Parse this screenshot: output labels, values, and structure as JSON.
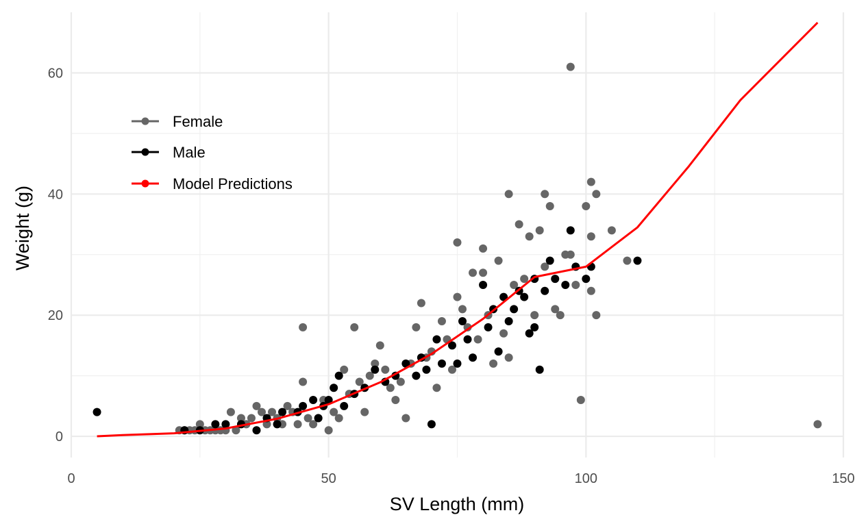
{
  "chart_data": {
    "type": "scatter",
    "title": "",
    "xlabel": "SV Length (mm)",
    "ylabel": "Weight (g)",
    "xlim": [
      0,
      150
    ],
    "ylim": [
      -3.5,
      70
    ],
    "x_ticks": [
      0,
      50,
      100,
      150
    ],
    "y_ticks": [
      0,
      20,
      40,
      60
    ],
    "x_tick_labels": [
      "0",
      "50",
      "100",
      "150"
    ],
    "y_tick_labels": [
      "0",
      "20",
      "40",
      "60"
    ],
    "grid": true,
    "legend_position": "top-left (inside)",
    "legend": [
      {
        "name": "Female",
        "color": "#666666"
      },
      {
        "name": "Male",
        "color": "#000000"
      },
      {
        "name": "Model Predictions",
        "color": "#ff0000"
      }
    ],
    "series": [
      {
        "name": "Female",
        "kind": "scatter",
        "color": "#666666",
        "points": [
          [
            21,
            1
          ],
          [
            22,
            1
          ],
          [
            23,
            1
          ],
          [
            24,
            1
          ],
          [
            25,
            2
          ],
          [
            26,
            1
          ],
          [
            27,
            1
          ],
          [
            28,
            1
          ],
          [
            29,
            1
          ],
          [
            30,
            1
          ],
          [
            31,
            4
          ],
          [
            32,
            1
          ],
          [
            33,
            3
          ],
          [
            34,
            2
          ],
          [
            35,
            3
          ],
          [
            36,
            5
          ],
          [
            37,
            4
          ],
          [
            38,
            2
          ],
          [
            39,
            4
          ],
          [
            40,
            3
          ],
          [
            41,
            2
          ],
          [
            42,
            5
          ],
          [
            43,
            4
          ],
          [
            44,
            2
          ],
          [
            45,
            18
          ],
          [
            45,
            9
          ],
          [
            46,
            3
          ],
          [
            47,
            2
          ],
          [
            48,
            3
          ],
          [
            49,
            6
          ],
          [
            50,
            1
          ],
          [
            51,
            4
          ],
          [
            52,
            3
          ],
          [
            53,
            11
          ],
          [
            54,
            7
          ],
          [
            55,
            18
          ],
          [
            56,
            9
          ],
          [
            57,
            4
          ],
          [
            58,
            10
          ],
          [
            59,
            12
          ],
          [
            60,
            15
          ],
          [
            61,
            11
          ],
          [
            62,
            8
          ],
          [
            63,
            6
          ],
          [
            64,
            9
          ],
          [
            65,
            3
          ],
          [
            66,
            12
          ],
          [
            67,
            18
          ],
          [
            68,
            22
          ],
          [
            69,
            13
          ],
          [
            70,
            14
          ],
          [
            71,
            8
          ],
          [
            72,
            19
          ],
          [
            73,
            16
          ],
          [
            74,
            11
          ],
          [
            75,
            23
          ],
          [
            75,
            32
          ],
          [
            76,
            21
          ],
          [
            77,
            18
          ],
          [
            78,
            27
          ],
          [
            79,
            16
          ],
          [
            80,
            27
          ],
          [
            80,
            31
          ],
          [
            81,
            20
          ],
          [
            82,
            12
          ],
          [
            83,
            29
          ],
          [
            84,
            17
          ],
          [
            85,
            40
          ],
          [
            85,
            13
          ],
          [
            86,
            25
          ],
          [
            87,
            35
          ],
          [
            88,
            26
          ],
          [
            89,
            33
          ],
          [
            90,
            20
          ],
          [
            91,
            34
          ],
          [
            92,
            40
          ],
          [
            92,
            28
          ],
          [
            93,
            38
          ],
          [
            94,
            21
          ],
          [
            95,
            20
          ],
          [
            96,
            30
          ],
          [
            97,
            61
          ],
          [
            97,
            30
          ],
          [
            98,
            25
          ],
          [
            99,
            6
          ],
          [
            100,
            38
          ],
          [
            101,
            42
          ],
          [
            101,
            24
          ],
          [
            101,
            33
          ],
          [
            102,
            20
          ],
          [
            102,
            40
          ],
          [
            105,
            34
          ],
          [
            108,
            29
          ],
          [
            145,
            2
          ]
        ]
      },
      {
        "name": "Male",
        "kind": "scatter",
        "color": "#000000",
        "points": [
          [
            5,
            4
          ],
          [
            22,
            1
          ],
          [
            25,
            1
          ],
          [
            28,
            2
          ],
          [
            30,
            2
          ],
          [
            33,
            2
          ],
          [
            36,
            1
          ],
          [
            38,
            3
          ],
          [
            40,
            2
          ],
          [
            41,
            4
          ],
          [
            44,
            4
          ],
          [
            45,
            5
          ],
          [
            47,
            6
          ],
          [
            48,
            3
          ],
          [
            49,
            5
          ],
          [
            50,
            6
          ],
          [
            51,
            8
          ],
          [
            52,
            10
          ],
          [
            53,
            5
          ],
          [
            55,
            7
          ],
          [
            57,
            8
          ],
          [
            59,
            11
          ],
          [
            61,
            9
          ],
          [
            63,
            10
          ],
          [
            65,
            12
          ],
          [
            67,
            10
          ],
          [
            68,
            13
          ],
          [
            69,
            11
          ],
          [
            70,
            2
          ],
          [
            71,
            16
          ],
          [
            72,
            12
          ],
          [
            74,
            15
          ],
          [
            75,
            12
          ],
          [
            76,
            19
          ],
          [
            77,
            16
          ],
          [
            78,
            13
          ],
          [
            80,
            25
          ],
          [
            81,
            18
          ],
          [
            82,
            21
          ],
          [
            83,
            14
          ],
          [
            84,
            23
          ],
          [
            85,
            19
          ],
          [
            86,
            21
          ],
          [
            87,
            24
          ],
          [
            88,
            23
          ],
          [
            89,
            17
          ],
          [
            90,
            26
          ],
          [
            90,
            18
          ],
          [
            91,
            11
          ],
          [
            92,
            24
          ],
          [
            93,
            29
          ],
          [
            94,
            26
          ],
          [
            96,
            25
          ],
          [
            97,
            34
          ],
          [
            98,
            28
          ],
          [
            100,
            26
          ],
          [
            101,
            28
          ],
          [
            110,
            29
          ]
        ]
      },
      {
        "name": "Model Predictions",
        "kind": "line",
        "color": "#ff0000",
        "points": [
          [
            5,
            0
          ],
          [
            10,
            0.2
          ],
          [
            20,
            0.5
          ],
          [
            30,
            1.3
          ],
          [
            40,
            2.9
          ],
          [
            50,
            5.3
          ],
          [
            60,
            8.9
          ],
          [
            70,
            13.6
          ],
          [
            80,
            19.4
          ],
          [
            90,
            26.3
          ],
          [
            100,
            28
          ],
          [
            110,
            34.5
          ],
          [
            120,
            44.6
          ],
          [
            130,
            55.5
          ],
          [
            145,
            68.3
          ]
        ]
      }
    ]
  }
}
